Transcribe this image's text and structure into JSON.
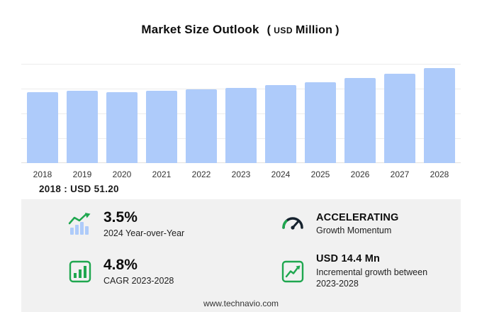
{
  "header": {
    "title": "Market Size Outlook",
    "unit_open": "(",
    "unit_currency": "USD",
    "unit_label": "Million",
    "unit_close": ")"
  },
  "chart_data": {
    "type": "bar",
    "title": "Market Size Outlook (USD Million)",
    "categories": [
      "2018",
      "2019",
      "2020",
      "2021",
      "2022",
      "2023",
      "2024",
      "2025",
      "2026",
      "2027",
      "2028"
    ],
    "values": [
      51.2,
      52.4,
      51.6,
      52.5,
      53.5,
      54.5,
      56.4,
      58.6,
      61.5,
      64.9,
      68.9
    ],
    "ylabel": "USD Million",
    "ylim": [
      0,
      72
    ],
    "grid": true,
    "legend": "none",
    "bar_color": "#aecbfa",
    "annotation": "2018 : USD 51.20"
  },
  "stats": {
    "items": [
      {
        "icon": "yoy-growth-bars-icon",
        "value": "3.5%",
        "label": "2024 Year-over-Year"
      },
      {
        "icon": "gauge-icon",
        "value": "ACCELERATING",
        "label": "Growth Momentum"
      },
      {
        "icon": "cagr-bar-chart-icon",
        "value": "4.8%",
        "label": "CAGR 2023-2028"
      },
      {
        "icon": "incremental-growth-chart-icon",
        "value": "USD 14.4 Mn",
        "label": "Incremental growth between 2023-2028"
      }
    ]
  },
  "footer": {
    "text": "www.technavio.com"
  },
  "colors": {
    "accent_green": "#1fa74f",
    "gauge_dark": "#16222e",
    "bar_blue": "#aecbfa",
    "panel_bg": "#f1f1f1"
  }
}
